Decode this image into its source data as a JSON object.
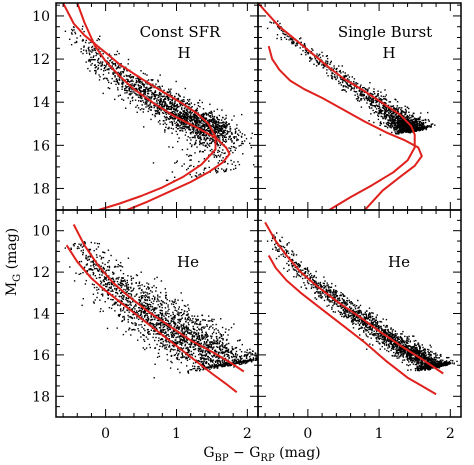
{
  "chart_data": {
    "type": "scatter",
    "layout": "2x2 panels",
    "xlabel": {
      "main": "G",
      "sub1": "BP",
      "mid": " − G",
      "sub2": "RP",
      "unit": " (mag)"
    },
    "ylabel": {
      "main": "M",
      "sub": "G",
      "unit": " (mag)"
    },
    "xlim": [
      -0.7,
      2.15
    ],
    "xticks": [
      0,
      1,
      2
    ],
    "ylim_top_row": [
      19.0,
      9.4
    ],
    "ylim_bottom_row": [
      19.0,
      9.0
    ],
    "yticks": [
      10,
      12,
      14,
      16,
      18
    ],
    "y_inverted": true,
    "panels": [
      {
        "title_line1": "Const SFR",
        "title_line2": "H",
        "title_layout": "two-line-centered",
        "row": 0,
        "col": 0,
        "curves": [
          {
            "x": [
              -0.6,
              -0.45,
              -0.3,
              -0.15,
              0.0,
              0.2,
              0.5,
              0.8,
              1.1,
              1.3,
              1.45,
              1.55,
              1.55,
              1.35,
              1.1,
              0.8,
              0.5,
              0.2,
              -0.1
            ],
            "y": [
              9.4,
              10.35,
              10.9,
              11.3,
              11.7,
              12.25,
              12.9,
              13.5,
              14.1,
              14.55,
              15.0,
              15.6,
              16.2,
              16.9,
              17.45,
              17.95,
              18.35,
              18.7,
              19.0
            ]
          },
          {
            "x": [
              -0.4,
              -0.3,
              -0.15,
              0.0,
              0.2,
              0.4,
              0.7,
              1.0,
              1.3,
              1.55,
              1.7,
              1.75,
              1.65,
              1.45,
              1.2,
              0.9,
              0.6,
              0.3
            ],
            "y": [
              9.4,
              10.3,
              11.4,
              12.1,
              12.8,
              13.4,
              14.1,
              14.7,
              15.2,
              15.65,
              16.1,
              16.4,
              16.8,
              17.25,
              17.7,
              18.15,
              18.6,
              19.0
            ]
          }
        ],
        "cloud": [
          {
            "x": -0.45,
            "y": 10.5,
            "spread": 0.09,
            "w": 1
          },
          {
            "x": -0.3,
            "y": 11.1,
            "spread": 0.11,
            "w": 3
          },
          {
            "x": -0.1,
            "y": 11.9,
            "spread": 0.13,
            "w": 6
          },
          {
            "x": 0.2,
            "y": 12.7,
            "spread": 0.16,
            "w": 9
          },
          {
            "x": 0.5,
            "y": 13.4,
            "spread": 0.19,
            "w": 12
          },
          {
            "x": 0.8,
            "y": 14.0,
            "spread": 0.22,
            "w": 14
          },
          {
            "x": 1.1,
            "y": 14.6,
            "spread": 0.22,
            "w": 16
          },
          {
            "x": 1.35,
            "y": 15.0,
            "spread": 0.22,
            "w": 15
          },
          {
            "x": 1.5,
            "y": 15.4,
            "spread": 0.2,
            "w": 9
          },
          {
            "x": 1.55,
            "y": 15.9,
            "spread": 0.25,
            "w": 4
          },
          {
            "x": 1.6,
            "y": 16.6,
            "spread": 0.35,
            "w": 2
          },
          {
            "x": 1.55,
            "y": 17.2,
            "spread": 0.3,
            "w": 1
          }
        ],
        "n_points": 1900
      },
      {
        "title_line1": "Single Burst",
        "title_line2": "H",
        "title_layout": "two-line-centered",
        "row": 0,
        "col": 1,
        "curves": [
          {
            "x": [
              -0.7,
              -0.55,
              -0.4,
              -0.25,
              -0.1,
              0.1,
              0.3,
              0.5,
              0.8,
              1.1,
              1.3,
              1.45,
              1.5,
              1.5,
              1.4,
              1.2,
              0.9,
              0.6,
              0.3
            ],
            "y": [
              9.4,
              9.95,
              10.5,
              10.9,
              11.3,
              11.85,
              12.4,
              12.9,
              13.5,
              14.15,
              14.6,
              15.1,
              15.5,
              16.1,
              16.7,
              17.25,
              17.85,
              18.4,
              19.0
            ]
          },
          {
            "x": [
              -0.55,
              -0.5,
              -0.4,
              -0.25,
              -0.05,
              0.2,
              0.5,
              0.8,
              1.1,
              1.35,
              1.55,
              1.6,
              1.5,
              1.3,
              1.05,
              0.8
            ],
            "y": [
              11.4,
              12.0,
              12.5,
              13.0,
              13.4,
              13.8,
              14.35,
              14.9,
              15.4,
              15.75,
              16.1,
              16.5,
              16.95,
              17.45,
              18.1,
              19.0
            ]
          }
        ],
        "cloud": [
          {
            "x": -0.5,
            "y": 10.2,
            "spread": 0.05,
            "w": 1
          },
          {
            "x": -0.3,
            "y": 10.95,
            "spread": 0.05,
            "w": 2
          },
          {
            "x": 0.0,
            "y": 11.6,
            "spread": 0.06,
            "w": 4
          },
          {
            "x": 0.4,
            "y": 12.7,
            "spread": 0.08,
            "w": 5
          },
          {
            "x": 0.8,
            "y": 13.6,
            "spread": 0.1,
            "w": 7
          },
          {
            "x": 1.1,
            "y": 14.3,
            "spread": 0.12,
            "w": 10
          },
          {
            "x": 1.3,
            "y": 14.8,
            "spread": 0.14,
            "w": 22
          },
          {
            "x": 1.45,
            "y": 15.25,
            "spread": 0.12,
            "w": 14
          }
        ],
        "n_points": 1600
      },
      {
        "title_line1": "He",
        "title_line2": "",
        "title_layout": "single-right",
        "row": 1,
        "col": 0,
        "curves": [
          {
            "x": [
              -0.45,
              -0.3,
              -0.1,
              0.1,
              0.3,
              0.6,
              0.9,
              1.2,
              1.5,
              1.75,
              1.95
            ],
            "y": [
              9.7,
              10.7,
              11.7,
              12.5,
              13.1,
              13.9,
              14.6,
              15.3,
              15.85,
              16.35,
              16.8
            ]
          },
          {
            "x": [
              -0.55,
              -0.4,
              -0.2,
              0.0,
              0.3,
              0.6,
              0.9,
              1.2,
              1.5,
              1.7,
              1.85
            ],
            "y": [
              10.7,
              11.5,
              12.3,
              12.9,
              13.7,
              14.5,
              15.3,
              16.1,
              16.9,
              17.4,
              17.8
            ]
          }
        ],
        "cloud": [
          {
            "x": -0.35,
            "y": 10.5,
            "spread": 0.14,
            "w": 2
          },
          {
            "x": -0.15,
            "y": 11.5,
            "spread": 0.18,
            "w": 4
          },
          {
            "x": 0.1,
            "y": 12.4,
            "spread": 0.22,
            "w": 7
          },
          {
            "x": 0.4,
            "y": 13.3,
            "spread": 0.26,
            "w": 10
          },
          {
            "x": 0.75,
            "y": 14.2,
            "spread": 0.3,
            "w": 12
          },
          {
            "x": 1.1,
            "y": 15.0,
            "spread": 0.32,
            "w": 12
          },
          {
            "x": 1.45,
            "y": 15.8,
            "spread": 0.32,
            "w": 10
          },
          {
            "x": 1.75,
            "y": 16.4,
            "spread": 0.3,
            "w": 7
          }
        ],
        "n_points": 2100
      },
      {
        "title_line1": "He",
        "title_line2": "",
        "title_layout": "single-right",
        "row": 1,
        "col": 1,
        "curves": [
          {
            "x": [
              -0.6,
              -0.45,
              -0.3,
              -0.1,
              0.1,
              0.4,
              0.7,
              1.0,
              1.3,
              1.6,
              1.9
            ],
            "y": [
              9.6,
              10.5,
              11.2,
              12.0,
              12.6,
              13.4,
              14.1,
              14.85,
              15.55,
              16.2,
              16.9
            ]
          },
          {
            "x": [
              -0.55,
              -0.45,
              -0.3,
              -0.1,
              0.2,
              0.5,
              0.8,
              1.1,
              1.4,
              1.6,
              1.8
            ],
            "y": [
              11.2,
              11.8,
              12.4,
              13.0,
              13.8,
              14.6,
              15.4,
              16.3,
              17.1,
              17.5,
              17.9
            ]
          }
        ],
        "cloud": [
          {
            "x": -0.5,
            "y": 10.2,
            "spread": 0.06,
            "w": 2
          },
          {
            "x": -0.2,
            "y": 11.6,
            "spread": 0.07,
            "w": 4
          },
          {
            "x": 0.2,
            "y": 12.8,
            "spread": 0.09,
            "w": 6
          },
          {
            "x": 0.6,
            "y": 13.8,
            "spread": 0.11,
            "w": 9
          },
          {
            "x": 1.0,
            "y": 14.85,
            "spread": 0.12,
            "w": 12
          },
          {
            "x": 1.4,
            "y": 15.75,
            "spread": 0.13,
            "w": 14
          },
          {
            "x": 1.75,
            "y": 16.5,
            "spread": 0.13,
            "w": 14
          }
        ],
        "n_points": 2200
      }
    ],
    "colors": {
      "points": "#000000",
      "curves": "#e0201c",
      "frame": "#000000"
    }
  }
}
